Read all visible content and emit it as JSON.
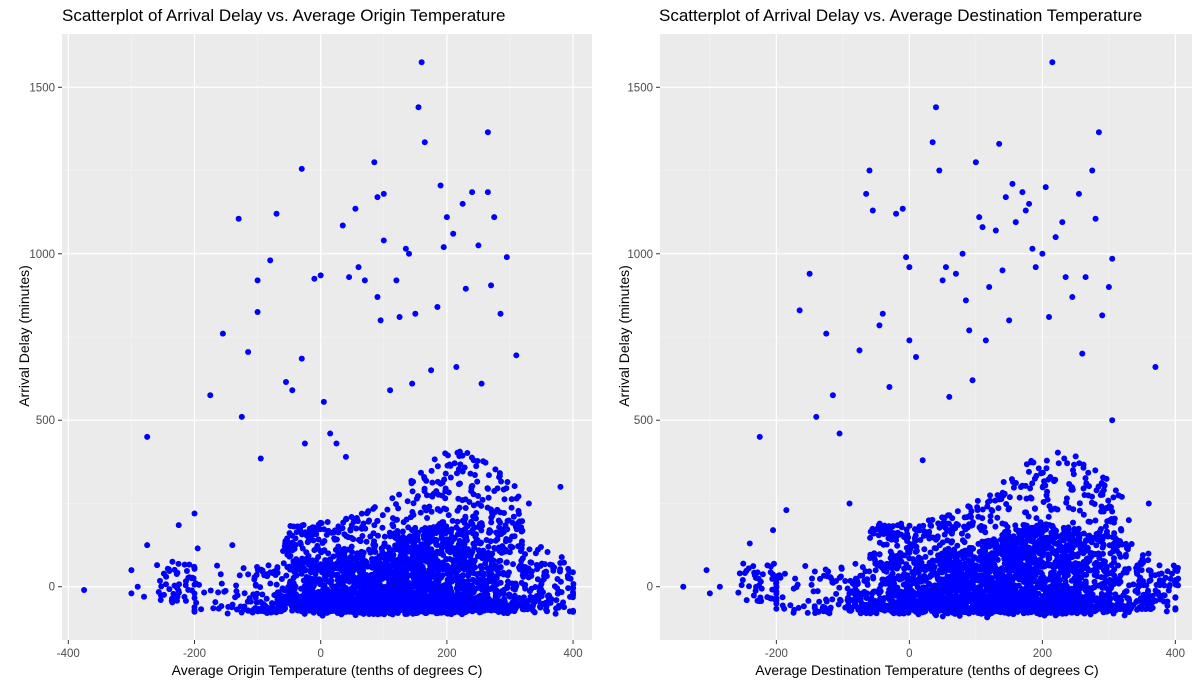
{
  "chart_data": [
    {
      "type": "scatter",
      "title": "Scatterplot of Arrival Delay vs. Average Origin Temperature",
      "xlabel": "Average Origin Temperature (tenths of degrees C)",
      "ylabel": "Arrival Delay (minutes)",
      "xlim": [
        -410,
        430
      ],
      "ylim": [
        -160,
        1660
      ],
      "xticks": [
        -400,
        -200,
        0,
        200,
        400
      ],
      "yticks": [
        0,
        500,
        1000,
        1500
      ],
      "grid": true,
      "point_color": "#0000ff",
      "outliers": [
        [
          -375,
          -10
        ],
        [
          -300,
          -20
        ],
        [
          -300,
          50
        ],
        [
          -290,
          0
        ],
        [
          -280,
          -30
        ],
        [
          -275,
          450
        ],
        [
          -275,
          125
        ],
        [
          -245,
          30
        ],
        [
          -235,
          75
        ],
        [
          -225,
          185
        ],
        [
          -200,
          220
        ],
        [
          -195,
          115
        ],
        [
          -175,
          575
        ],
        [
          -155,
          760
        ],
        [
          -140,
          125
        ],
        [
          -130,
          1105
        ],
        [
          -125,
          510
        ],
        [
          -115,
          705
        ],
        [
          -100,
          920
        ],
        [
          -100,
          825
        ],
        [
          -95,
          385
        ],
        [
          -80,
          980
        ],
        [
          -70,
          1120
        ],
        [
          -55,
          615
        ],
        [
          -45,
          590
        ],
        [
          -30,
          1255
        ],
        [
          -30,
          685
        ],
        [
          -25,
          430
        ],
        [
          -10,
          925
        ],
        [
          0,
          935
        ],
        [
          5,
          555
        ],
        [
          15,
          460
        ],
        [
          25,
          430
        ],
        [
          35,
          1085
        ],
        [
          40,
          390
        ],
        [
          45,
          930
        ],
        [
          55,
          1135
        ],
        [
          60,
          960
        ],
        [
          70,
          920
        ],
        [
          85,
          1275
        ],
        [
          90,
          870
        ],
        [
          90,
          1170
        ],
        [
          95,
          800
        ],
        [
          100,
          1180
        ],
        [
          100,
          1040
        ],
        [
          110,
          590
        ],
        [
          120,
          920
        ],
        [
          125,
          810
        ],
        [
          135,
          1015
        ],
        [
          140,
          1000
        ],
        [
          145,
          610
        ],
        [
          150,
          820
        ],
        [
          155,
          1440
        ],
        [
          160,
          1575
        ],
        [
          165,
          1335
        ],
        [
          175,
          650
        ],
        [
          185,
          840
        ],
        [
          190,
          1205
        ],
        [
          195,
          1020
        ],
        [
          200,
          1110
        ],
        [
          210,
          1060
        ],
        [
          215,
          660
        ],
        [
          225,
          1150
        ],
        [
          230,
          895
        ],
        [
          240,
          1185
        ],
        [
          250,
          1025
        ],
        [
          255,
          610
        ],
        [
          265,
          1365
        ],
        [
          265,
          1185
        ],
        [
          270,
          905
        ],
        [
          275,
          1110
        ],
        [
          285,
          820
        ],
        [
          295,
          990
        ],
        [
          310,
          695
        ],
        [
          380,
          300
        ],
        [
          330,
          250
        ]
      ]
    },
    {
      "type": "scatter",
      "title": "Scatterplot of Arrival Delay vs. Average Destination Temperature",
      "xlabel": "Average Destination Temperature (tenths of degrees C)",
      "ylabel": "Arrival Delay (minutes)",
      "xlim": [
        -375,
        425
      ],
      "ylim": [
        -160,
        1660
      ],
      "xticks": [
        -200,
        0,
        200,
        400
      ],
      "yticks": [
        0,
        500,
        1000,
        1500
      ],
      "grid": true,
      "point_color": "#0000ff",
      "outliers": [
        [
          -340,
          0
        ],
        [
          -305,
          50
        ],
        [
          -300,
          -20
        ],
        [
          -285,
          0
        ],
        [
          -255,
          40
        ],
        [
          -240,
          130
        ],
        [
          -225,
          450
        ],
        [
          -205,
          170
        ],
        [
          -185,
          230
        ],
        [
          -165,
          830
        ],
        [
          -150,
          940
        ],
        [
          -140,
          510
        ],
        [
          -125,
          760
        ],
        [
          -115,
          575
        ],
        [
          -105,
          460
        ],
        [
          -90,
          250
        ],
        [
          -75,
          710
        ],
        [
          -65,
          1180
        ],
        [
          -60,
          1250
        ],
        [
          -55,
          1130
        ],
        [
          -45,
          785
        ],
        [
          -40,
          820
        ],
        [
          -30,
          600
        ],
        [
          -20,
          1120
        ],
        [
          -10,
          1135
        ],
        [
          -5,
          990
        ],
        [
          0,
          960
        ],
        [
          0,
          740
        ],
        [
          10,
          690
        ],
        [
          20,
          380
        ],
        [
          35,
          1335
        ],
        [
          40,
          1440
        ],
        [
          45,
          1250
        ],
        [
          50,
          920
        ],
        [
          55,
          960
        ],
        [
          60,
          570
        ],
        [
          70,
          940
        ],
        [
          80,
          1000
        ],
        [
          85,
          860
        ],
        [
          90,
          770
        ],
        [
          95,
          620
        ],
        [
          100,
          1275
        ],
        [
          105,
          1110
        ],
        [
          110,
          1080
        ],
        [
          115,
          740
        ],
        [
          120,
          900
        ],
        [
          130,
          1070
        ],
        [
          135,
          1330
        ],
        [
          140,
          950
        ],
        [
          145,
          1170
        ],
        [
          150,
          800
        ],
        [
          155,
          1210
        ],
        [
          160,
          1095
        ],
        [
          170,
          1185
        ],
        [
          175,
          1130
        ],
        [
          180,
          1150
        ],
        [
          185,
          1015
        ],
        [
          190,
          960
        ],
        [
          200,
          1000
        ],
        [
          205,
          1200
        ],
        [
          210,
          810
        ],
        [
          215,
          1575
        ],
        [
          220,
          1050
        ],
        [
          230,
          1095
        ],
        [
          235,
          930
        ],
        [
          245,
          870
        ],
        [
          255,
          1180
        ],
        [
          260,
          700
        ],
        [
          265,
          930
        ],
        [
          275,
          1250
        ],
        [
          280,
          1105
        ],
        [
          285,
          1365
        ],
        [
          290,
          815
        ],
        [
          300,
          900
        ],
        [
          305,
          985
        ],
        [
          305,
          500
        ],
        [
          370,
          660
        ],
        [
          360,
          250
        ],
        [
          330,
          200
        ]
      ]
    }
  ]
}
